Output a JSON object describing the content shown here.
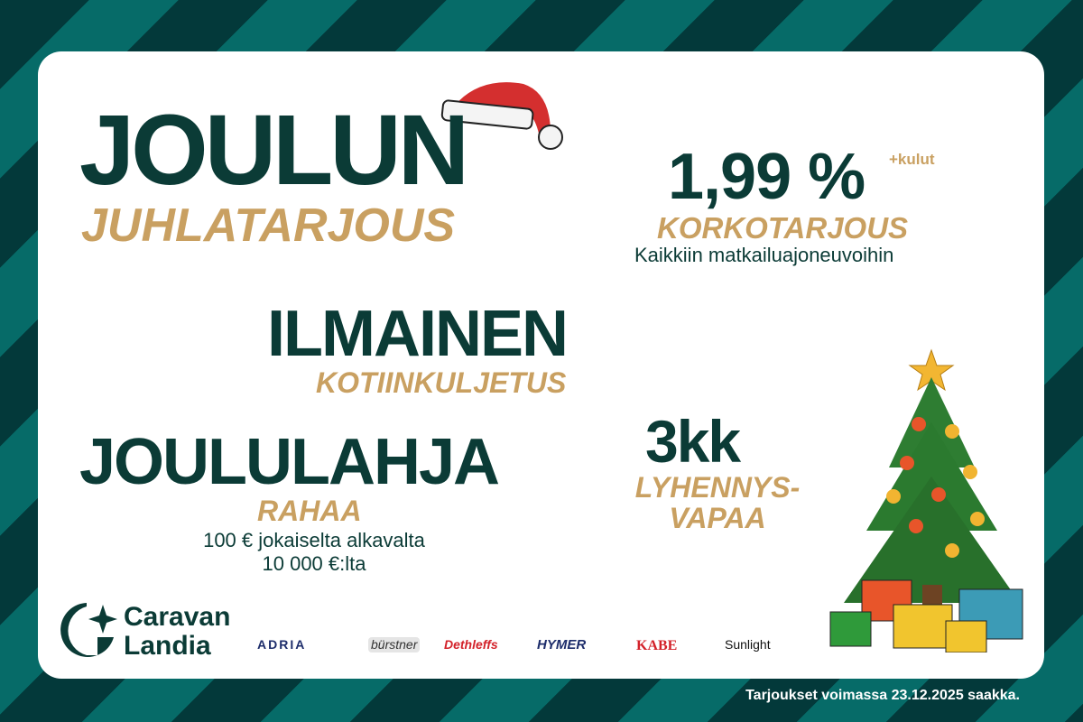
{
  "headline": {
    "title": "JOULUN",
    "subtitle": "JUHLATARJOUS"
  },
  "rate_offer": {
    "value": "1,99 %",
    "suffix": "+kulut",
    "label": "KORKOTARJOUS",
    "description": "Kaikkiin matkailuajoneuvoihin"
  },
  "delivery_offer": {
    "title": "ILMAINEN",
    "subtitle": "KOTIINKULJETUS"
  },
  "gift_offer": {
    "title": "JOULULAHJA",
    "subtitle": "RAHAA",
    "line1": "100 € jokaiselta alkavalta",
    "line2": "10 000 €:lta"
  },
  "deferral_offer": {
    "title": "3kk",
    "line1": "LYHENNYS-",
    "line2": "VAPAA"
  },
  "logo": {
    "line1": "Caravan",
    "line2": "Landia"
  },
  "brands": [
    "ADRIA",
    "bürstner",
    "Dethleffs",
    "HYMER",
    "KABE",
    "Sunlight"
  ],
  "footer": "Tarjoukset voimassa 23.12.2025 saakka.",
  "colors": {
    "dark": "#03393a",
    "teal": "#066b68",
    "text": "#0b3b36",
    "gold": "#c9a061"
  }
}
